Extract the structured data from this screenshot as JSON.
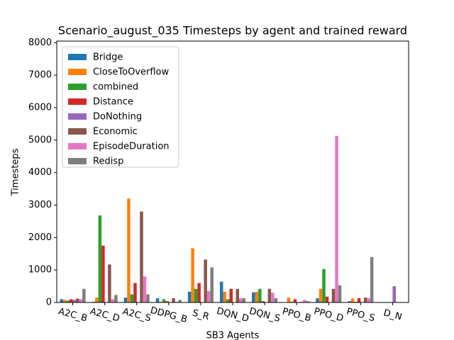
{
  "chart_data": {
    "type": "bar",
    "title": "Scenario_august_035 Timesteps by agent and trained reward",
    "xlabel": "SB3 Agents",
    "ylabel": "Timesteps",
    "categories": [
      "A2C_B",
      "A2C_D",
      "A2C_S",
      "DDPG_B",
      "S_R",
      "DQN_D",
      "DQN_S",
      "PPO_B",
      "PPO_D",
      "PPO_S",
      "D_N"
    ],
    "series": [
      {
        "name": "Bridge",
        "color": "#1f77b4",
        "values": [
          100,
          20,
          150,
          130,
          330,
          640,
          310,
          0,
          130,
          40,
          0
        ]
      },
      {
        "name": "CloseToOverflow",
        "color": "#ff7f0e",
        "values": [
          80,
          150,
          3200,
          20,
          1670,
          330,
          330,
          150,
          420,
          120,
          0
        ]
      },
      {
        "name": "combined",
        "color": "#2ca02c",
        "values": [
          60,
          2680,
          250,
          100,
          420,
          100,
          420,
          20,
          1030,
          20,
          0
        ]
      },
      {
        "name": "Distance",
        "color": "#d62728",
        "values": [
          100,
          1750,
          600,
          40,
          600,
          420,
          40,
          100,
          180,
          130,
          0
        ]
      },
      {
        "name": "DoNothing",
        "color": "#9467bd",
        "values": [
          80,
          0,
          0,
          0,
          0,
          0,
          0,
          0,
          0,
          0,
          500
        ]
      },
      {
        "name": "Economic",
        "color": "#8c564b",
        "values": [
          120,
          1170,
          2800,
          130,
          1320,
          420,
          420,
          20,
          420,
          150,
          0
        ]
      },
      {
        "name": "EpisodeDuration",
        "color": "#e377c2",
        "values": [
          100,
          100,
          800,
          20,
          350,
          130,
          300,
          80,
          5130,
          130,
          0
        ]
      },
      {
        "name": "Redisp",
        "color": "#7f7f7f",
        "values": [
          420,
          230,
          250,
          80,
          1080,
          130,
          130,
          40,
          530,
          1400,
          0
        ]
      }
    ],
    "ylim": [
      0,
      8050
    ],
    "yticks": [
      0,
      1000,
      2000,
      3000,
      4000,
      5000,
      6000,
      7000,
      8000
    ],
    "legend": "upper left"
  }
}
